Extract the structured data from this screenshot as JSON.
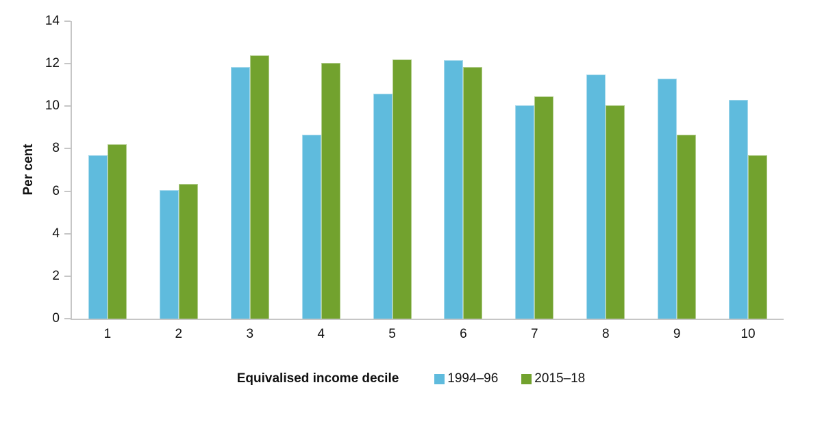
{
  "chart_data": {
    "type": "bar",
    "title": "",
    "categories": [
      "1",
      "2",
      "3",
      "4",
      "5",
      "6",
      "7",
      "8",
      "9",
      "10"
    ],
    "series": [
      {
        "name": "1994–96",
        "color": "#5fbbdd",
        "values": [
          7.7,
          6.05,
          11.85,
          8.65,
          10.6,
          12.15,
          10.05,
          11.5,
          11.3,
          10.3
        ]
      },
      {
        "name": "2015–18",
        "color": "#72a22e",
        "values": [
          8.2,
          6.35,
          12.4,
          12.05,
          12.2,
          11.85,
          10.45,
          10.05,
          8.65,
          7.7
        ]
      }
    ],
    "xlabel": "Equivalised income decile",
    "ylabel": "Per cent",
    "ylim": [
      0,
      14
    ],
    "ytick_step": 2,
    "grid": false,
    "legend_position": "bottom",
    "axis_color": "#c6c6c6",
    "text_color": "#111111"
  }
}
